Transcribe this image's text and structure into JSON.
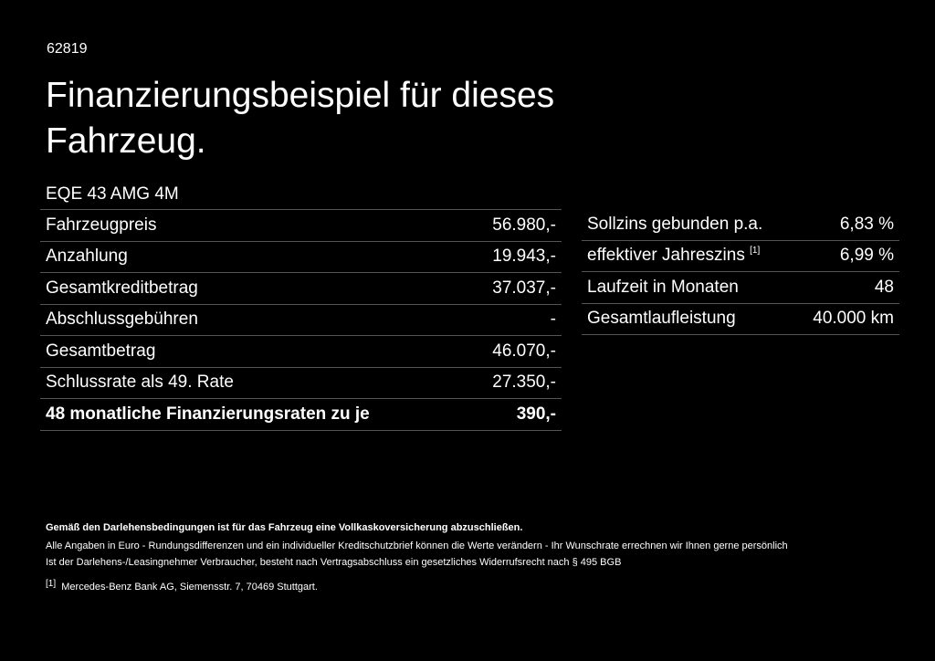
{
  "id": "62819",
  "title": "Finanzierungsbeispiel für dieses Fahrzeug.",
  "model": "EQE 43 AMG 4M",
  "left_table": {
    "rows": [
      [
        "Fahrzeugpreis",
        "56.980,-"
      ],
      [
        "Anzahlung",
        "19.943,-"
      ],
      [
        "Gesamtkreditbetrag",
        "37.037,-"
      ],
      [
        "Abschlussgebühren",
        "-"
      ],
      [
        "Gesamtbetrag",
        "46.070,-"
      ],
      [
        "Schlussrate als 49. Rate",
        "27.350,-"
      ]
    ],
    "total": [
      "48 monatliche Finanzierungsraten zu je",
      "390,-"
    ]
  },
  "right_table": {
    "rows": [
      {
        "label": "Sollzins gebunden p.a.",
        "value": "6,83 %"
      },
      {
        "label": "effektiver Jahreszins",
        "note": "[1]",
        "value": "6,99 %"
      },
      {
        "label": "Laufzeit in Monaten",
        "value": "48"
      },
      {
        "label": "Gesamtlaufleistung",
        "value": "40.000 km"
      }
    ]
  },
  "footer": {
    "notice": "Gemäß den Darlehensbedingungen ist für das Fahrzeug eine Vollkaskoversicherung abzuschließen.",
    "lines": [
      "Alle Angaben in Euro - Rundungsdifferenzen und ein individueller Kreditschutzbrief können die Werte verändern - Ihr Wunschrate errechnen wir Ihnen gerne persönlich",
      "Ist der Darlehens-/Leasingnehmer Verbraucher, besteht nach Vertragsabschluss ein gesetzliches Widerrufsrecht nach § 495 BGB"
    ],
    "footnote": {
      "marker": "[1]",
      "text": "Mercedes-Benz Bank AG, Siemensstr. 7, 70469 Stuttgart."
    }
  }
}
